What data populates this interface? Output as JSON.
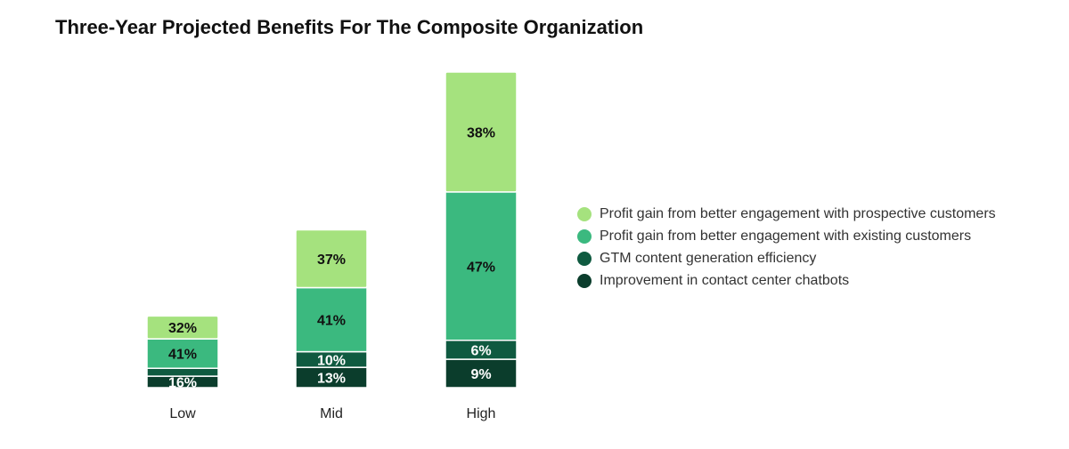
{
  "chart_data": {
    "type": "bar",
    "stacked": true,
    "title": "Three-Year Projected Benefits For The Composite Organization",
    "categories": [
      "Low",
      "Mid",
      "High"
    ],
    "series": [
      {
        "name": "Improvement in contact center chatbots",
        "color": "#0b3d2c",
        "values": [
          16,
          13,
          9
        ]
      },
      {
        "name": "GTM content generation efficiency",
        "color": "#0f5a40",
        "values": [
          11,
          10,
          6
        ]
      },
      {
        "name": "Profit gain from better engagement with existing customers",
        "color": "#3bb97f",
        "values": [
          41,
          41,
          47
        ]
      },
      {
        "name": "Profit gain from better engagement with prospective customers",
        "color": "#a5e27e",
        "values": [
          32,
          37,
          38
        ]
      }
    ],
    "data_labels": [
      [
        "16%",
        "13%",
        "9%"
      ],
      [
        "",
        "10%",
        "6%"
      ],
      [
        "41%",
        "41%",
        "47%"
      ],
      [
        "32%",
        "37%",
        "38%"
      ]
    ],
    "relative_totals": [
      1.0,
      2.2,
      4.4
    ],
    "legend_position": "right",
    "legend_order": [
      "Profit gain from better engagement with prospective customers",
      "Profit gain from better engagement with existing customers",
      "GTM content generation efficiency",
      "Improvement in contact center chatbots"
    ],
    "grid": false
  }
}
